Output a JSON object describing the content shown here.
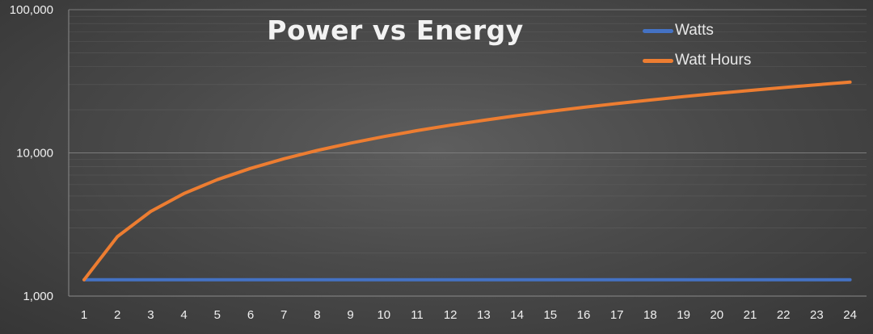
{
  "chart_data": {
    "type": "line",
    "title": "Power vs Energy",
    "xlabel": "",
    "ylabel": "",
    "y_scale": "log",
    "ylim": [
      1000,
      100000
    ],
    "y_ticks": [
      1000,
      10000,
      100000
    ],
    "y_tick_labels": [
      "1,000",
      "10,000",
      "100,000"
    ],
    "grid": true,
    "legend_position": "top-right",
    "categories": [
      "1",
      "2",
      "3",
      "4",
      "5",
      "6",
      "7",
      "8",
      "9",
      "10",
      "11",
      "12",
      "13",
      "14",
      "15",
      "16",
      "17",
      "18",
      "19",
      "20",
      "21",
      "22",
      "23",
      "24"
    ],
    "series": [
      {
        "name": "Watts",
        "color": "#4472c4",
        "values": [
          1300,
          1300,
          1300,
          1300,
          1300,
          1300,
          1300,
          1300,
          1300,
          1300,
          1300,
          1300,
          1300,
          1300,
          1300,
          1300,
          1300,
          1300,
          1300,
          1300,
          1300,
          1300,
          1300,
          1300
        ]
      },
      {
        "name": "Watt Hours",
        "color": "#ed7d31",
        "values": [
          1300,
          2600,
          3900,
          5200,
          6500,
          7800,
          9100,
          10400,
          11700,
          13000,
          14300,
          15600,
          16900,
          18200,
          19500,
          20800,
          22100,
          23400,
          24700,
          26000,
          27300,
          28600,
          29900,
          31200
        ]
      }
    ]
  }
}
